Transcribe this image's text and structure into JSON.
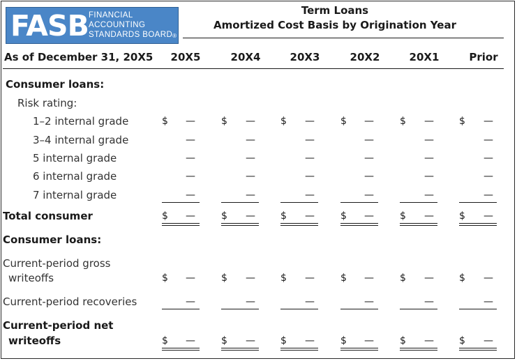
{
  "logo": {
    "mark": "FASB",
    "lines": [
      "FINANCIAL",
      "ACCOUNTING",
      "STANDARDS BOARD"
    ],
    "registered": "®"
  },
  "title": {
    "line1": "Term Loans",
    "line2": "Amortized Cost Basis by Origination Year"
  },
  "header": {
    "as_of": "As of December 31, 20X5",
    "columns": [
      "20X5",
      "20X4",
      "20X3",
      "20X2",
      "20X1",
      "Prior"
    ]
  },
  "rows": {
    "consumer_loans_heading": "Consumer loans:",
    "risk_rating_label": "Risk rating:",
    "grade_1_2": "1–2 internal grade",
    "grade_3_4": "3–4 internal grade",
    "grade_5": "5 internal grade",
    "grade_6": "6 internal grade",
    "grade_7": "7 internal grade",
    "total_consumer": "Total consumer",
    "consumer_loans_heading_2": "Consumer loans:",
    "gross_writeoffs_line1": "Current-period gross",
    "gross_writeoffs_line2": "writeoffs",
    "recoveries": "Current-period recoveries",
    "net_writeoffs_line1": "Current-period net",
    "net_writeoffs_line2": "writeoffs"
  },
  "symbols": {
    "dollar": "$",
    "dash": "—"
  }
}
